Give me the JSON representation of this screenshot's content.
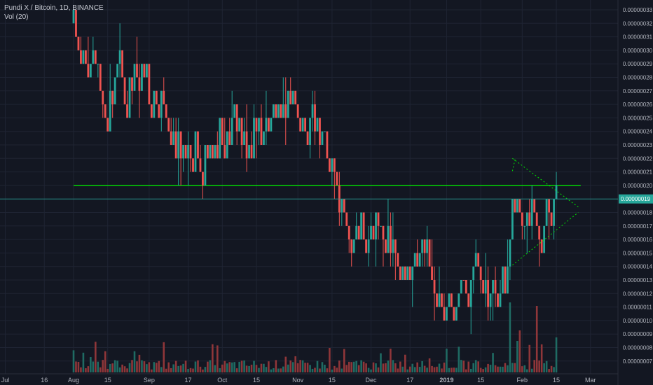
{
  "legend": {
    "title": "Pundi X / Bitcoin, 1D, BINANCE",
    "indicator": "Vol (20)"
  },
  "colors": {
    "background": "#131722",
    "grid": "#1f2433",
    "up": "#26a69a",
    "down": "#ef5350",
    "up_volume": "#1f6b63",
    "down_volume": "#8f3639",
    "support_line": "#00e600",
    "triangle": "#00e600",
    "price_line": "#26a69a",
    "axis_text": "#b2b5be",
    "last_price_bg": "#26a69a"
  },
  "last_price_label": "0.00000019",
  "chart_data": {
    "type": "candlestick",
    "title": "Pundi X / Bitcoin, 1D, BINANCE",
    "ylim": [
      6.4e-08,
      3.34e-07
    ],
    "y_ticks": [
      "0.00000033",
      "0.00000032",
      "0.00000031",
      "0.00000030",
      "0.00000029",
      "0.00000028",
      "0.00000027",
      "0.00000026",
      "0.00000025",
      "0.00000024",
      "0.00000023",
      "0.00000022",
      "0.00000021",
      "0.00000020",
      "0.00000019",
      "0.00000018",
      "0.00000017",
      "0.00000016",
      "0.00000015",
      "0.00000014",
      "0.00000013",
      "0.00000012",
      "0.00000011",
      "0.00000010",
      "0.00000009",
      "0.00000008",
      "0.00000007"
    ],
    "x_labels": [
      "Jul",
      "16",
      "Aug",
      "15",
      "Sep",
      "17",
      "Oct",
      "15",
      "Nov",
      "15",
      "Dec",
      "17",
      "2019",
      "15",
      "Feb",
      "15",
      "Mar"
    ],
    "x_label_days": [
      -28,
      -12,
      0,
      14,
      31,
      47,
      61,
      75,
      92,
      106,
      122,
      138,
      153,
      167,
      184,
      198,
      212
    ],
    "x_label_bold": [
      false,
      false,
      false,
      false,
      false,
      false,
      false,
      false,
      false,
      false,
      false,
      false,
      true,
      false,
      false,
      false,
      false
    ],
    "close_path": [
      [
        0,
        3.2e-07
      ],
      [
        2,
        2.95e-07
      ],
      [
        4,
        3e-07
      ],
      [
        6,
        2.85e-07
      ],
      [
        8,
        2.95e-07
      ],
      [
        10,
        2.9e-07
      ],
      [
        13,
        2.45e-07
      ],
      [
        16,
        2.75e-07
      ],
      [
        19,
        2.85e-07
      ],
      [
        22,
        2.55e-07
      ],
      [
        25,
        2.85e-07
      ],
      [
        28,
        2.95e-07
      ],
      [
        31,
        2.7e-07
      ],
      [
        35,
        2.65e-07
      ],
      [
        38,
        2.5e-07
      ],
      [
        41,
        2.4e-07
      ],
      [
        44,
        2.2e-07
      ],
      [
        47,
        2.1e-07
      ],
      [
        50,
        2.25e-07
      ],
      [
        53,
        2.15e-07
      ],
      [
        56,
        2.2e-07
      ],
      [
        59,
        2.4e-07
      ],
      [
        62,
        2.3e-07
      ],
      [
        65,
        2.45e-07
      ],
      [
        68,
        2.4e-07
      ],
      [
        71,
        2.3e-07
      ],
      [
        74,
        2.45e-07
      ],
      [
        77,
        2.4e-07
      ],
      [
        80,
        2.55e-07
      ],
      [
        83,
        2.6e-07
      ],
      [
        86,
        2.5e-07
      ],
      [
        88,
        2.65e-07
      ],
      [
        91,
        2.6e-07
      ],
      [
        94,
        2.45e-07
      ],
      [
        97,
        2.5e-07
      ],
      [
        100,
        2.4e-07
      ],
      [
        103,
        2.3e-07
      ],
      [
        106,
        2.15e-07
      ],
      [
        108,
        1.95e-07
      ],
      [
        110,
        1.8e-07
      ],
      [
        112,
        1.7e-07
      ],
      [
        115,
        1.65e-07
      ],
      [
        118,
        1.7e-07
      ],
      [
        121,
        1.6e-07
      ],
      [
        124,
        1.75e-07
      ],
      [
        126,
        1.6e-07
      ],
      [
        128,
        1.65e-07
      ],
      [
        131,
        1.5e-07
      ],
      [
        134,
        1.45e-07
      ],
      [
        137,
        1.5e-07
      ],
      [
        140,
        1.4e-07
      ],
      [
        143,
        1.5e-07
      ],
      [
        146,
        1.35e-07
      ],
      [
        149,
        1.2e-07
      ],
      [
        151,
        1.1e-07
      ],
      [
        154,
        1.15e-07
      ],
      [
        157,
        1.1e-07
      ],
      [
        160,
        1.15e-07
      ],
      [
        163,
        1.25e-07
      ],
      [
        166,
        1.3e-07
      ],
      [
        169,
        1.2e-07
      ],
      [
        172,
        1.15e-07
      ],
      [
        175,
        1.25e-07
      ],
      [
        177,
        1.35e-07
      ],
      [
        179,
        1.6e-07
      ],
      [
        180,
        1.95e-07
      ],
      [
        182,
        1.8e-07
      ],
      [
        184,
        1.9e-07
      ],
      [
        186,
        1.7e-07
      ],
      [
        188,
        1.85e-07
      ],
      [
        190,
        1.7e-07
      ],
      [
        192,
        1.6e-07
      ],
      [
        194,
        1.85e-07
      ],
      [
        196,
        1.75e-07
      ],
      [
        198,
        1.9e-07
      ]
    ],
    "support_level": 2e-07,
    "support_range_days": [
      0,
      208
    ],
    "triangle": {
      "upper": [
        [
          180,
          2.2e-07
        ],
        [
          207,
          1.84e-07
        ]
      ],
      "lower": [
        [
          180,
          1.41e-07
        ],
        [
          207,
          1.8e-07
        ]
      ]
    },
    "last_price": 1.9e-07,
    "volume_spikes": [
      [
        179,
        1.0
      ],
      [
        183,
        0.6
      ],
      [
        190,
        0.95
      ],
      [
        198,
        0.5
      ],
      [
        182,
        0.45
      ],
      [
        192,
        0.4
      ]
    ]
  }
}
